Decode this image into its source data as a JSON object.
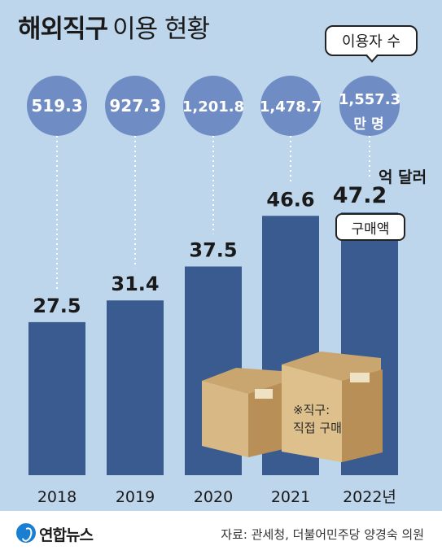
{
  "title": {
    "bold": "해외직구",
    "light": "이용 현황"
  },
  "users_label": "이용자 수",
  "amount_label": "구매액",
  "amount_unit_suffix": "억 달러",
  "users_unit": "만 명",
  "note": {
    "line1": "※직구:",
    "line2": "직접 구매"
  },
  "source": "자료: 관세청, 더불어민주당 양경숙 의원",
  "logo": "연합뉴스",
  "colors": {
    "background": "#bed6ec",
    "bar": "#3a5b8f",
    "bubble": "#6f8cc4",
    "box": "#d7b98a"
  },
  "chart_data": {
    "type": "bar",
    "categories": [
      "2018",
      "2019",
      "2020",
      "2021",
      "2022년"
    ],
    "series": [
      {
        "name": "구매액",
        "values": [
          27.5,
          31.4,
          37.5,
          46.6,
          47.2
        ]
      },
      {
        "name": "이용자 수",
        "values": [
          519.3,
          927.3,
          1201.8,
          1478.7,
          1557.3
        ]
      }
    ],
    "bar_labels": [
      "27.5",
      "31.4",
      "37.5",
      "46.6",
      "47.2"
    ],
    "bubble_labels": [
      "519.3",
      "927.3",
      "1,201.8",
      "1,478.7",
      "1,557.3"
    ],
    "ylim": [
      0,
      50
    ],
    "xlabel": "",
    "ylabel": ""
  }
}
